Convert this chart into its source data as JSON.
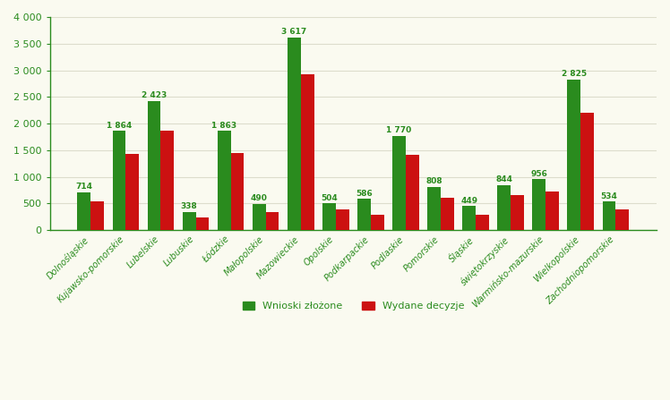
{
  "categories": [
    "Dolnośląskie",
    "Kujawsko-pomorskie",
    "Lubelskie",
    "Lubuskie",
    "Łódzkie",
    "Małopolskie",
    "Mazowieckie",
    "Opolskie",
    "Podkarpackie",
    "Podlaskie",
    "Pomorskie",
    "Śląskie",
    "świętokrzyskie",
    "Warmińsko-mazurskie",
    "Wielkopolskie",
    "Zachodniopomorskie"
  ],
  "wnioski": [
    714,
    1864,
    2423,
    338,
    1863,
    490,
    3617,
    504,
    586,
    1770,
    808,
    449,
    844,
    956,
    2825,
    534
  ],
  "decyzje": [
    533,
    1432,
    1873,
    247,
    1456,
    348,
    2921,
    385,
    295,
    1416,
    607,
    290,
    659,
    722,
    2199,
    388
  ],
  "green": "#2A8B1E",
  "red": "#CC1111",
  "label_green": "Wnioski złożone",
  "label_red": "Wydane decyzje",
  "ylim": [
    0,
    4000
  ],
  "yticks": [
    0,
    500,
    1000,
    1500,
    2000,
    2500,
    3000,
    3500,
    4000
  ],
  "background_color": "#FAFAF0",
  "grid_color": "#DDDDCC",
  "bar_width": 0.38,
  "figsize": [
    7.48,
    4.47
  ],
  "dpi": 100
}
